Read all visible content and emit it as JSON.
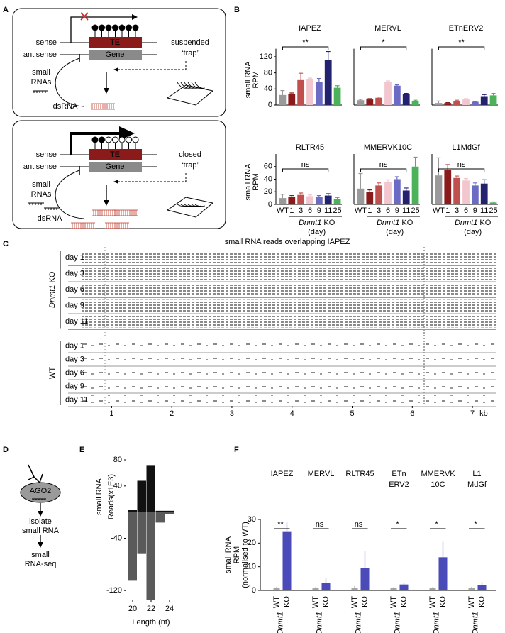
{
  "panel_labels": {
    "a": "A",
    "b": "B",
    "c": "C",
    "d": "D",
    "e": "E",
    "f": "F"
  },
  "diagram_a": [
    {
      "sense": "sense",
      "antisense": "antisense",
      "te": "TE",
      "gene": "Gene",
      "trap": [
        "suspended",
        "‘trap’"
      ],
      "small_rnas": [
        "small",
        "RNAs"
      ],
      "dsrna": "dsRNA"
    },
    {
      "sense": "sense",
      "antisense": "antisense",
      "te": "TE",
      "gene": "Gene",
      "trap": [
        "closed",
        "‘trap’"
      ],
      "small_rnas": [
        "small",
        "RNAs"
      ],
      "dsrna": "dsRNA"
    }
  ],
  "diagram_d": {
    "protein": "AGO2",
    "step1": [
      "isolate",
      "small RNA"
    ],
    "step2": [
      "small",
      "RNA-seq"
    ]
  },
  "chart_data": [
    {
      "type": "bar",
      "title": "IAPEZ",
      "values": [
        25,
        27,
        62,
        65,
        58,
        112,
        43
      ],
      "errors": [
        11,
        3,
        17,
        2,
        8,
        21,
        5
      ],
      "colors": [
        "#9a9a9a",
        "#8b1a1a",
        "#c0504d",
        "#f2c6cf",
        "#6b6bc4",
        "#22226e",
        "#4cb25a"
      ],
      "ylim": [
        0,
        140
      ],
      "yticks": [
        0,
        40,
        80,
        120
      ],
      "ylabel": [
        "small RNA",
        "RPM"
      ],
      "significance": "**"
    },
    {
      "type": "bar",
      "title": "MERVL",
      "values": [
        12,
        14,
        18,
        58,
        48,
        27,
        10
      ],
      "errors": [
        2,
        2,
        2,
        2,
        2,
        2,
        2
      ],
      "colors": [
        "#9a9a9a",
        "#8b1a1a",
        "#c0504d",
        "#f2c6cf",
        "#6b6bc4",
        "#22226e",
        "#4cb25a"
      ],
      "ylim": [
        0,
        140
      ],
      "significance": "*"
    },
    {
      "type": "bar",
      "title": "ETnERV2",
      "values": [
        5,
        5,
        10,
        14,
        8,
        22,
        24
      ],
      "errors": [
        5,
        1,
        2,
        2,
        1,
        4,
        5
      ],
      "colors": [
        "#9a9a9a",
        "#8b1a1a",
        "#c0504d",
        "#f2c6cf",
        "#6b6bc4",
        "#22226e",
        "#4cb25a"
      ],
      "ylim": [
        0,
        140
      ],
      "significance": "**"
    },
    {
      "type": "bar",
      "title": "RLTR45",
      "categories": [
        "WT",
        "1",
        "3",
        "6",
        "9",
        "11",
        "25"
      ],
      "values": [
        10,
        12,
        15,
        13,
        12,
        14,
        8
      ],
      "errors": [
        6,
        2,
        3,
        2,
        2,
        3,
        3
      ],
      "colors": [
        "#9a9a9a",
        "#8b1a1a",
        "#c0504d",
        "#f2c6cf",
        "#6b6bc4",
        "#22226e",
        "#4cb25a"
      ],
      "ylim": [
        0,
        80
      ],
      "yticks": [
        0,
        20,
        40,
        60
      ],
      "ylabel": [
        "small RNA",
        "RPM"
      ],
      "significance": "ns",
      "xlabel": {
        "gene": "Dnmt1",
        "suffix": "KO",
        "unit": "(day)"
      }
    },
    {
      "type": "bar",
      "title": "MMERVK10C",
      "categories": [
        "WT",
        "1",
        "3",
        "6",
        "9",
        "11",
        "25"
      ],
      "values": [
        25,
        20,
        30,
        36,
        40,
        22,
        60
      ],
      "errors": [
        24,
        3,
        4,
        3,
        4,
        4,
        15
      ],
      "colors": [
        "#9a9a9a",
        "#8b1a1a",
        "#c0504d",
        "#f2c6cf",
        "#6b6bc4",
        "#22226e",
        "#4cb25a"
      ],
      "ylim": [
        0,
        80
      ],
      "significance": "ns",
      "xlabel": {
        "gene": "Dnmt1",
        "suffix": "KO",
        "unit": "(day)"
      }
    },
    {
      "type": "bar",
      "title": "L1MdGf",
      "categories": [
        "WT",
        "1",
        "3",
        "6",
        "9",
        "11",
        "25"
      ],
      "values": [
        46,
        55,
        42,
        38,
        30,
        33,
        3
      ],
      "errors": [
        28,
        8,
        3,
        3,
        4,
        6,
        1
      ],
      "colors": [
        "#9a9a9a",
        "#8b1a1a",
        "#c0504d",
        "#f2c6cf",
        "#6b6bc4",
        "#22226e",
        "#4cb25a"
      ],
      "ylim": [
        0,
        80
      ],
      "significance": "ns",
      "xlabel": {
        "gene": "Dnmt1",
        "suffix": "KO",
        "unit": "(day)"
      }
    },
    {
      "type": "reads",
      "title": "small RNA reads overlapping IAPEZ",
      "groups": [
        {
          "label": {
            "gene": "Dnmt1",
            "suffix": "KO"
          },
          "rows": [
            "day 1",
            "day 3",
            "day 6",
            "day 9",
            "day 11"
          ]
        },
        {
          "label": "WT",
          "rows": [
            "day 1",
            "day 3",
            "day 6",
            "day 9",
            "day 11"
          ]
        }
      ],
      "xlim": [
        0.5,
        7.4
      ],
      "xticks": [
        1,
        2,
        3,
        4,
        5,
        6,
        7
      ],
      "xunit": "kb"
    },
    {
      "type": "diverging_bar",
      "x": [
        20,
        21,
        22,
        23,
        24
      ],
      "series": [
        {
          "color": "#111111",
          "values": [
            3,
            48,
            72,
            2,
            2
          ]
        },
        {
          "color": "#5a5a5a",
          "values": [
            -105,
            -63,
            -135,
            -16,
            -3
          ]
        }
      ],
      "xlim": [
        19.5,
        24.5
      ],
      "xticks": [
        20,
        22,
        24
      ],
      "ylim": [
        -135,
        80
      ],
      "yticks": [
        80,
        40,
        -40,
        -120
      ],
      "ylabel": [
        "small RNA",
        "Reads(x1E3)"
      ],
      "xlabel": "Length (nt)"
    },
    {
      "type": "grouped_bar",
      "categories": [
        [
          "IAPEZ"
        ],
        [
          "MERVL"
        ],
        [
          "RLTR45"
        ],
        [
          "ETn",
          "ERV2"
        ],
        [
          "MMERVK",
          "10C"
        ],
        [
          "L1",
          "MdGf"
        ]
      ],
      "series": [
        {
          "label": "WT",
          "color": "#a6a6a6",
          "values": [
            1,
            1,
            1,
            1,
            1,
            1
          ],
          "errors": [
            0.5,
            0.4,
            0.8,
            0.4,
            0.4,
            0.5
          ]
        },
        {
          "label": "KO",
          "color": "#4a4ab8",
          "values": [
            25,
            3.3,
            9.5,
            2.5,
            14,
            2.3
          ],
          "errors": [
            4,
            2,
            7,
            0.8,
            6.5,
            1.2
          ]
        }
      ],
      "group_label": "Dnmt1",
      "significance": [
        "**",
        "ns",
        "ns",
        "*",
        "*",
        "*"
      ],
      "ylim": [
        0,
        30
      ],
      "yticks": [
        0,
        10,
        20,
        30
      ],
      "ylabel": [
        "small RNA",
        "RPM",
        "(normalised to WT)"
      ]
    }
  ]
}
